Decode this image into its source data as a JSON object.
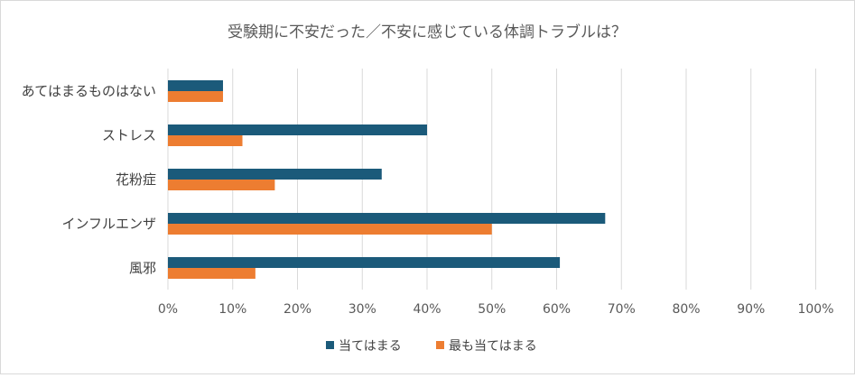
{
  "chart_data": {
    "type": "bar",
    "orientation": "horizontal",
    "title": "受験期に不安だった／不安に感じている体調トラブルは？",
    "categories": [
      "あてはまるものはない",
      "ストレス",
      "花粉症",
      "インフルエンザ",
      "風邪"
    ],
    "series": [
      {
        "name": "当てはまる",
        "color": "#1b5a7a",
        "values": [
          8.5,
          40,
          33,
          67.5,
          60.5
        ]
      },
      {
        "name": "最も当てはまる",
        "color": "#ed7d31",
        "values": [
          8.5,
          11.5,
          16.5,
          50,
          13.5
        ]
      }
    ],
    "x_ticks": [
      "0%",
      "10%",
      "20%",
      "30%",
      "40%",
      "50%",
      "60%",
      "70%",
      "80%",
      "90%",
      "100%"
    ],
    "xlim": [
      0,
      100
    ],
    "grid": true,
    "legend_position": "bottom"
  }
}
